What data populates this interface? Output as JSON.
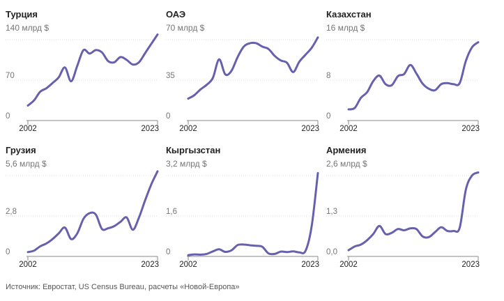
{
  "source": "Источник: Евростат, US Census Bureau, расчеты «Новой-Европа»",
  "colors": {
    "line": "#6660ad",
    "grid": "#dcdcdc",
    "axis": "#888888",
    "muted": "#757575"
  },
  "chart_data": [
    {
      "type": "line",
      "title": "Турция",
      "max_label": "140 млрд $",
      "ylim": [
        0,
        140
      ],
      "yticks": [
        {
          "value": 70,
          "label": "70"
        },
        {
          "value": 0,
          "label": "0"
        }
      ],
      "xlim": [
        2002,
        2023
      ],
      "xticks": [
        {
          "value": 2002,
          "label": "2002"
        },
        {
          "value": 2023,
          "label": "2023"
        }
      ],
      "x": [
        2002,
        2003,
        2004,
        2005,
        2006,
        2007,
        2008,
        2009,
        2010,
        2011,
        2012,
        2013,
        2014,
        2015,
        2016,
        2017,
        2018,
        2019,
        2020,
        2021,
        2022,
        2023
      ],
      "values": [
        26,
        35,
        50,
        56,
        65,
        75,
        92,
        68,
        95,
        122,
        116,
        122,
        118,
        103,
        101,
        110,
        105,
        97,
        101,
        117,
        133,
        149
      ]
    },
    {
      "type": "line",
      "title": "ОАЭ",
      "max_label": "70 млрд $",
      "ylim": [
        0,
        70
      ],
      "yticks": [
        {
          "value": 35,
          "label": "35"
        },
        {
          "value": 0,
          "label": "0"
        }
      ],
      "xlim": [
        2002,
        2023
      ],
      "xticks": [
        {
          "value": 2002,
          "label": "2002"
        },
        {
          "value": 2023,
          "label": "2023"
        }
      ],
      "x": [
        2002,
        2003,
        2004,
        2005,
        2006,
        2007,
        2008,
        2009,
        2010,
        2011,
        2012,
        2013,
        2014,
        2015,
        2016,
        2017,
        2018,
        2019,
        2020,
        2021,
        2022,
        2023
      ],
      "values": [
        19,
        22,
        27,
        31,
        37,
        53,
        40,
        43,
        55,
        64,
        67,
        67,
        64,
        62,
        56,
        52,
        50,
        42,
        51,
        57,
        63,
        72
      ]
    },
    {
      "type": "line",
      "title": "Казахстан",
      "max_label": "16 млрд $",
      "ylim": [
        0,
        16
      ],
      "yticks": [
        {
          "value": 8,
          "label": "8"
        },
        {
          "value": 0,
          "label": "0"
        }
      ],
      "xlim": [
        2002,
        2023
      ],
      "xticks": [
        {
          "value": 2002,
          "label": "2002"
        },
        {
          "value": 2023,
          "label": "2023"
        }
      ],
      "x": [
        2002,
        2003,
        2004,
        2005,
        2006,
        2007,
        2008,
        2009,
        2010,
        2011,
        2012,
        2013,
        2014,
        2015,
        2016,
        2017,
        2018,
        2019,
        2020,
        2021,
        2022,
        2023
      ],
      "values": [
        2.2,
        2.5,
        4.5,
        5.6,
        7.8,
        8.9,
        7.2,
        7.0,
        8.8,
        9.2,
        11.0,
        9.3,
        7.3,
        6.3,
        6.0,
        7.2,
        7.4,
        7.2,
        7.4,
        11.8,
        14.5,
        15.5
      ]
    },
    {
      "type": "line",
      "title": "Грузия",
      "max_label": "5,6 млрд $",
      "ylim": [
        0,
        5.6
      ],
      "yticks": [
        {
          "value": 2.8,
          "label": "2,8"
        },
        {
          "value": 0,
          "label": "0"
        }
      ],
      "xlim": [
        2002,
        2023
      ],
      "xticks": [
        {
          "value": 2002,
          "label": "2002"
        },
        {
          "value": 2023,
          "label": "2023"
        }
      ],
      "x": [
        2002,
        2003,
        2004,
        2005,
        2006,
        2007,
        2008,
        2009,
        2010,
        2011,
        2012,
        2013,
        2014,
        2015,
        2016,
        2017,
        2018,
        2019,
        2020,
        2021,
        2022,
        2023
      ],
      "values": [
        0.3,
        0.4,
        0.7,
        0.9,
        1.2,
        1.6,
        2.0,
        1.2,
        1.6,
        2.6,
        3.0,
        2.9,
        1.9,
        1.95,
        2.1,
        2.4,
        2.7,
        1.85,
        2.7,
        3.9,
        5.0,
        5.9
      ]
    },
    {
      "type": "line",
      "title": "Кыргызстан",
      "max_label": "3,2 млрд $",
      "ylim": [
        0,
        3.2
      ],
      "yticks": [
        {
          "value": 1.6,
          "label": "1,6"
        },
        {
          "value": 0,
          "label": "0"
        }
      ],
      "xlim": [
        2002,
        2023
      ],
      "xticks": [
        {
          "value": 2002,
          "label": "2002"
        },
        {
          "value": 2023,
          "label": "2023"
        }
      ],
      "x": [
        2002,
        2003,
        2004,
        2005,
        2006,
        2007,
        2008,
        2009,
        2010,
        2011,
        2012,
        2013,
        2014,
        2015,
        2016,
        2017,
        2018,
        2019,
        2020,
        2021,
        2022,
        2023
      ],
      "values": [
        0.05,
        0.08,
        0.07,
        0.1,
        0.2,
        0.28,
        0.18,
        0.24,
        0.45,
        0.47,
        0.44,
        0.42,
        0.38,
        0.12,
        0.1,
        0.19,
        0.17,
        0.2,
        0.16,
        0.22,
        1.2,
        3.3
      ]
    },
    {
      "type": "line",
      "title": "Армения",
      "max_label": "2,6 млрд $",
      "ylim": [
        0,
        2.6
      ],
      "yticks": [
        {
          "value": 1.3,
          "label": "1,3"
        },
        {
          "value": 0,
          "label": "0,0"
        }
      ],
      "xlim": [
        2002,
        2023
      ],
      "xticks": [
        {
          "value": 2002,
          "label": "2002"
        },
        {
          "value": 2023,
          "label": "2023"
        }
      ],
      "x": [
        2002,
        2003,
        2004,
        2005,
        2006,
        2007,
        2008,
        2009,
        2010,
        2011,
        2012,
        2013,
        2014,
        2015,
        2016,
        2017,
        2018,
        2019,
        2020,
        2021,
        2022,
        2023
      ],
      "values": [
        0.2,
        0.32,
        0.38,
        0.52,
        0.72,
        0.98,
        0.72,
        0.76,
        0.88,
        0.84,
        0.9,
        0.88,
        0.64,
        0.62,
        0.78,
        0.94,
        0.82,
        0.82,
        0.92,
        2.15,
        2.6,
        2.7
      ]
    }
  ]
}
